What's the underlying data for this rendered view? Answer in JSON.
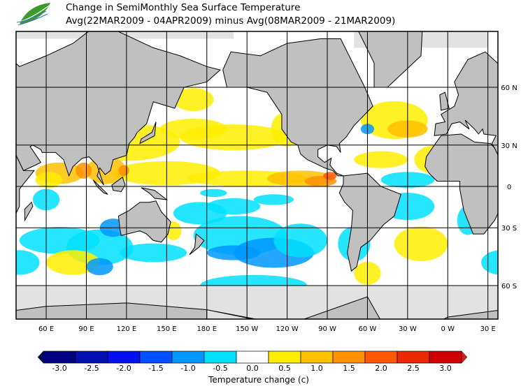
{
  "header": {
    "title": "Change in SemiMonthly Sea Surface Temperature",
    "subtitle": "Avg(22MAR2009 - 04APR2009) minus Avg(08MAR2009 - 21MAR2009)",
    "logo_text": "APEC Climate Center logo"
  },
  "map": {
    "lon_labels": [
      "60 E",
      "90 E",
      "120 E",
      "150 E",
      "180 E",
      "150 W",
      "120 W",
      "90 W",
      "60 W",
      "30 W",
      "0 W",
      "30 E"
    ],
    "lon_values": [
      60,
      90,
      120,
      150,
      180,
      210,
      240,
      270,
      300,
      330,
      360,
      390
    ],
    "lat_labels": [
      "60 N",
      "30 N",
      "0",
      "30 S",
      "60 S"
    ],
    "lat_values": [
      60,
      30,
      0,
      -30,
      -60
    ],
    "land_color": "#c0c0c0",
    "ice_color": "#e2e2e2"
  },
  "colorbar": {
    "label": "Temperature change  (c)",
    "tick_labels": [
      "-3.0",
      "-2.5",
      "-2.0",
      "-1.5",
      "-1.0",
      "-0.5",
      "0.0",
      "0.5",
      "1.0",
      "1.5",
      "2.0",
      "2.5",
      "3.0"
    ],
    "colors": [
      "#000080",
      "#0010b0",
      "#0010f0",
      "#0050ff",
      "#0098ff",
      "#00e0ff",
      "#ffffff",
      "#ffee00",
      "#ffc000",
      "#ff9000",
      "#ff5800",
      "#ee2800",
      "#d00000"
    ],
    "under_color": "#000060",
    "over_color": "#d02020"
  }
}
